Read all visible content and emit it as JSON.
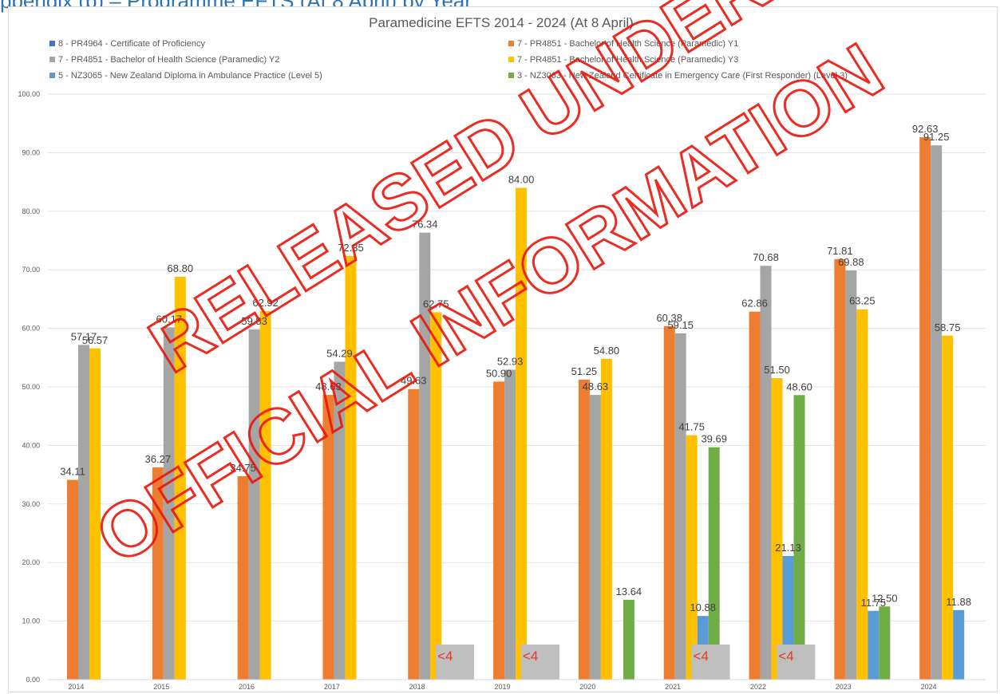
{
  "document": {
    "heading_fragment": "ppendix (b) – Programme EFTS (At 8 April) by Year"
  },
  "watermark": {
    "line1": "RELEASED UNDER",
    "line2": "OFFICIAL INFORMATION",
    "color": "#e8160c"
  },
  "chart_data": {
    "type": "bar",
    "title": "Paramedicine EFTS 2014 - 2024 (At 8 April)",
    "categories": [
      "2014",
      "2015",
      "2016",
      "2017",
      "2018",
      "2019",
      "2020",
      "2021",
      "2022",
      "2023",
      "2024"
    ],
    "ylim": [
      0,
      100
    ],
    "yticks": [
      "0.00",
      "10.00",
      "20.00",
      "30.00",
      "40.00",
      "50.00",
      "60.00",
      "70.00",
      "80.00",
      "90.00",
      "100.00"
    ],
    "legend_position": "top",
    "grid": true,
    "series": [
      {
        "name": "8 - PR4964 - Certificate of Proficiency",
        "color": "#4472c4",
        "values": [
          null,
          null,
          null,
          null,
          null,
          null,
          null,
          null,
          null,
          null,
          null
        ]
      },
      {
        "name": "7 - PR4851 - Bachelor of Health Science (Paramedic) Y1",
        "color": "#ed7d31",
        "values": [
          34.11,
          36.27,
          34.75,
          48.63,
          49.63,
          50.9,
          51.25,
          60.38,
          62.86,
          71.81,
          92.63
        ],
        "labels": [
          "34.11",
          "36.27",
          "34.75",
          "48.63",
          "49.63",
          "50.90",
          "51.25",
          "60.38",
          "62.86",
          "71.81",
          "92.63"
        ]
      },
      {
        "name": "7 - PR4851 - Bachelor of Health Science (Paramedic) Y2",
        "color": "#a5a5a5",
        "values": [
          57.17,
          60.17,
          59.83,
          54.29,
          76.34,
          52.93,
          48.63,
          59.15,
          70.68,
          69.88,
          91.25
        ],
        "labels": [
          "57.17",
          "60.17",
          "59.83",
          "54.29",
          "76.34",
          "52.93",
          "48.63",
          "59.15",
          "70.68",
          "69.88",
          "91.25"
        ]
      },
      {
        "name": "7 - PR4851 - Bachelor of Health Science (Paramedic) Y3",
        "color": "#ffc000",
        "values": [
          56.57,
          68.8,
          62.92,
          72.35,
          62.75,
          84.0,
          54.8,
          41.75,
          51.5,
          63.25,
          58.75
        ],
        "labels": [
          "56.57",
          "68.80",
          "62.92",
          "72.35",
          "62.75",
          "84.00",
          "54.80",
          "41.75",
          "51.50",
          "63.25",
          "58.75"
        ]
      },
      {
        "name": "5 - NZ3065 - New Zealand Diploma in Ambulance Practice (Level 5)",
        "color": "#5b9bd5",
        "values": [
          null,
          null,
          null,
          null,
          null,
          null,
          null,
          10.88,
          21.13,
          11.75,
          11.88
        ],
        "labels": [
          "",
          "",
          "",
          "",
          "",
          "",
          "",
          "10.88",
          "21.13",
          "11.75",
          "11.88"
        ]
      },
      {
        "name": "3 - NZ3063 - New Zealand Certificate in Emergency Care (First Responder) (Level 3)",
        "color": "#70ad47",
        "values": [
          null,
          null,
          null,
          null,
          null,
          null,
          13.64,
          39.69,
          48.6,
          12.5,
          null
        ],
        "labels": [
          "",
          "",
          "",
          "",
          "",
          "",
          "13.64",
          "39.69",
          "48.60",
          "12.50",
          ""
        ]
      }
    ],
    "suppressed_notes": [
      {
        "category": "2018",
        "text": "<4"
      },
      {
        "category": "2019",
        "text": "<4"
      },
      {
        "category": "2021",
        "text": "<4"
      },
      {
        "category": "2022",
        "text": "<4"
      }
    ]
  }
}
